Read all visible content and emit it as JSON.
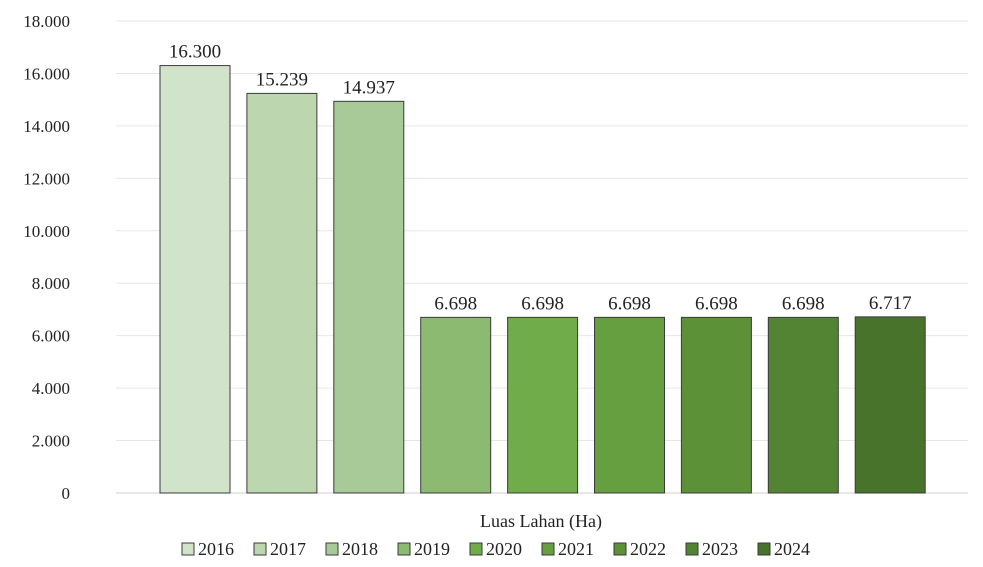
{
  "chart_data": {
    "type": "bar",
    "xlabel": "Luas Lahan (Ha)",
    "ylabel": "",
    "ylim": [
      0,
      18000
    ],
    "y_ticks": [
      0,
      2000,
      4000,
      6000,
      8000,
      10000,
      12000,
      14000,
      16000,
      18000
    ],
    "y_tick_labels": [
      "0",
      "2.000",
      "4.000",
      "6.000",
      "8.000",
      "10.000",
      "12.000",
      "14.000",
      "16.000",
      "18.000"
    ],
    "grid": true,
    "legend_position": "bottom",
    "series": [
      {
        "name": "2016",
        "value": 16300,
        "label": "16.300",
        "color": "#d2e3cb"
      },
      {
        "name": "2017",
        "value": 15239,
        "label": "15.239",
        "color": "#bcd6b0"
      },
      {
        "name": "2018",
        "value": 14937,
        "label": "14.937",
        "color": "#a8c998"
      },
      {
        "name": "2019",
        "value": 6698,
        "label": "6.698",
        "color": "#8cba70"
      },
      {
        "name": "2020",
        "value": 6698,
        "label": "6.698",
        "color": "#70ac49"
      },
      {
        "name": "2021",
        "value": 6698,
        "label": "6.698",
        "color": "#669f3f"
      },
      {
        "name": "2022",
        "value": 6698,
        "label": "6.698",
        "color": "#5c9137"
      },
      {
        "name": "2023",
        "value": 6698,
        "label": "6.698",
        "color": "#538434"
      },
      {
        "name": "2024",
        "value": 6717,
        "label": "6.717",
        "color": "#47732a"
      }
    ]
  }
}
